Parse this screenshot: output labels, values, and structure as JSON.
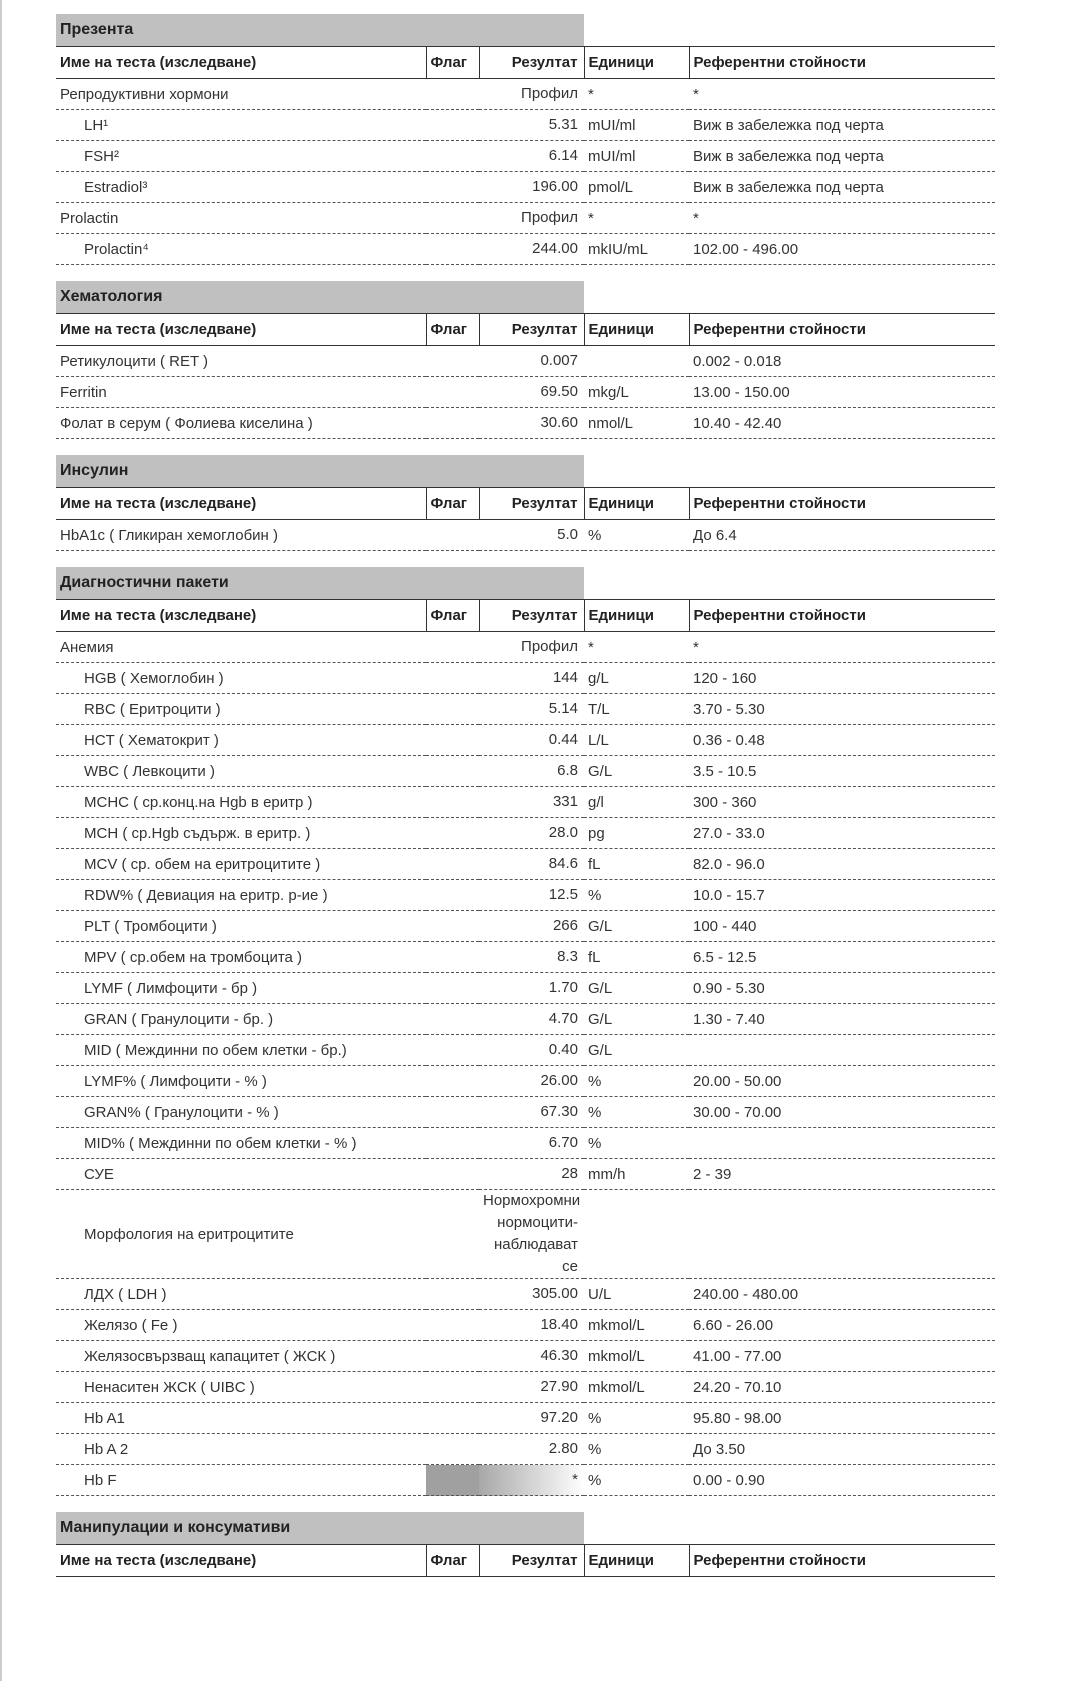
{
  "headers": {
    "name": "Име на теста (изследване)",
    "flag": "Флаг",
    "result": "Резултат",
    "units": "Единици",
    "ref": "Референтни стойности"
  },
  "sections": [
    {
      "title": "Презента",
      "rows": [
        {
          "name": "Репродуктивни хормони",
          "result": "Профил",
          "units": "*",
          "ref": "*"
        },
        {
          "name": "LH¹",
          "indent": true,
          "result": "5.31",
          "units": "mUI/ml",
          "ref": "Виж в забележка под черта"
        },
        {
          "name": "FSH²",
          "indent": true,
          "result": "6.14",
          "units": "mUI/ml",
          "ref": "Виж в забележка под черта"
        },
        {
          "name": "Estradiol³",
          "indent": true,
          "result": "196.00",
          "units": "pmol/L",
          "ref": "Виж в забележка под черта"
        },
        {
          "name": "Prolactin",
          "result": "Профил",
          "units": "*",
          "ref": "*"
        },
        {
          "name": "Prolactin⁴",
          "indent": true,
          "result": "244.00",
          "units": "mkIU/mL",
          "ref": "102.00 - 496.00"
        }
      ]
    },
    {
      "title": "Хематология",
      "rows": [
        {
          "name": "Ретикулоцити ( RET )",
          "result": "0.007",
          "units": "",
          "ref": "0.002 - 0.018"
        },
        {
          "name": "Ferritin",
          "result": "69.50",
          "units": "mkg/L",
          "ref": "13.00 - 150.00"
        },
        {
          "name": "Фолат в серум ( Фолиева киселина )",
          "result": "30.60",
          "units": "nmol/L",
          "ref": "10.40 - 42.40"
        }
      ]
    },
    {
      "title": "Инсулин",
      "rows": [
        {
          "name": "HbA1c ( Гликиран хемоглобин )",
          "result": "5.0",
          "units": "%",
          "ref": "До 6.4"
        }
      ]
    },
    {
      "title": "Диагностични пакети",
      "rows": [
        {
          "name": "Анемия",
          "result": "Профил",
          "units": "*",
          "ref": "*"
        },
        {
          "name": "HGB ( Хемоглобин )",
          "indent": true,
          "result": "144",
          "units": "g/L",
          "ref": "120 - 160"
        },
        {
          "name": "RBC ( Еритроцити )",
          "indent": true,
          "result": "5.14",
          "units": "T/L",
          "ref": "3.70 - 5.30"
        },
        {
          "name": "HCT ( Хематокрит )",
          "indent": true,
          "result": "0.44",
          "units": "L/L",
          "ref": "0.36 - 0.48"
        },
        {
          "name": "WBC ( Левкоцити )",
          "indent": true,
          "result": "6.8",
          "units": "G/L",
          "ref": "3.5 - 10.5"
        },
        {
          "name": "MCHC ( ср.конц.на Hgb в еритр )",
          "indent": true,
          "result": "331",
          "units": "g/l",
          "ref": "300 - 360"
        },
        {
          "name": "MCH ( ср.Hgb съдърж. в еритр. )",
          "indent": true,
          "result": "28.0",
          "units": "pg",
          "ref": "27.0 - 33.0"
        },
        {
          "name": "MCV ( ср. обем на еритроцитите )",
          "indent": true,
          "result": "84.6",
          "units": "fL",
          "ref": "82.0 - 96.0"
        },
        {
          "name": "RDW% ( Девиация на еритр. р-ие )",
          "indent": true,
          "result": "12.5",
          "units": "%",
          "ref": "10.0 - 15.7"
        },
        {
          "name": "PLT ( Тромбоцити )",
          "indent": true,
          "result": "266",
          "units": "G/L",
          "ref": "100 - 440"
        },
        {
          "name": "MPV ( ср.обем на тромбоцита )",
          "indent": true,
          "result": "8.3",
          "units": "fL",
          "ref": "6.5 - 12.5"
        },
        {
          "name": "LYMF ( Лимфоцити - бр )",
          "indent": true,
          "result": "1.70",
          "units": "G/L",
          "ref": "0.90 - 5.30"
        },
        {
          "name": "GRAN ( Гранулоцити - бр. )",
          "indent": true,
          "result": "4.70",
          "units": "G/L",
          "ref": "1.30 - 7.40"
        },
        {
          "name": "MID ( Междинни по обем клетки - бр.)",
          "indent": true,
          "result": "0.40",
          "units": "G/L",
          "ref": ""
        },
        {
          "name": "LYMF% ( Лимфоцити - % )",
          "indent": true,
          "result": "26.00",
          "units": "%",
          "ref": "20.00 - 50.00"
        },
        {
          "name": "GRAN% ( Гранулоцити - % )",
          "indent": true,
          "result": "67.30",
          "units": "%",
          "ref": "30.00 - 70.00"
        },
        {
          "name": "MID% ( Междинни по обем клетки - % )",
          "indent": true,
          "result": "6.70",
          "units": "%",
          "ref": ""
        },
        {
          "name": "СУЕ",
          "indent": true,
          "result": "28",
          "units": "mm/h",
          "ref": "2 - 39"
        },
        {
          "name": "Морфология на еритроцитите",
          "indent": true,
          "result": "Нормохромни нормоцити-наблюдават се",
          "units": "",
          "ref": ""
        },
        {
          "name": "ЛДХ ( LDH )",
          "indent": true,
          "result": "305.00",
          "units": "U/L",
          "ref": "240.00 - 480.00"
        },
        {
          "name": "Желязо ( Fe )",
          "indent": true,
          "result": "18.40",
          "units": "mkmol/L",
          "ref": "6.60 - 26.00"
        },
        {
          "name": "Желязосвързващ капацитет ( ЖСК )",
          "indent": true,
          "result": "46.30",
          "units": "mkmol/L",
          "ref": "41.00 - 77.00"
        },
        {
          "name": "Ненаситен ЖСК ( UIBC )",
          "indent": true,
          "result": "27.90",
          "units": "mkmol/L",
          "ref": "24.20 - 70.10"
        },
        {
          "name": "Hb A1",
          "indent": true,
          "result": "97.20",
          "units": "%",
          "ref": "95.80 - 98.00"
        },
        {
          "name": "Hb A 2",
          "indent": true,
          "result": "2.80",
          "units": "%",
          "ref": "До 3.50"
        },
        {
          "name": "Hb F",
          "indent": true,
          "flagged": true,
          "result": "*",
          "units": "%",
          "ref": "0.00 - 0.90"
        }
      ]
    },
    {
      "title": "Манипулации и консумативи",
      "rows": []
    }
  ]
}
